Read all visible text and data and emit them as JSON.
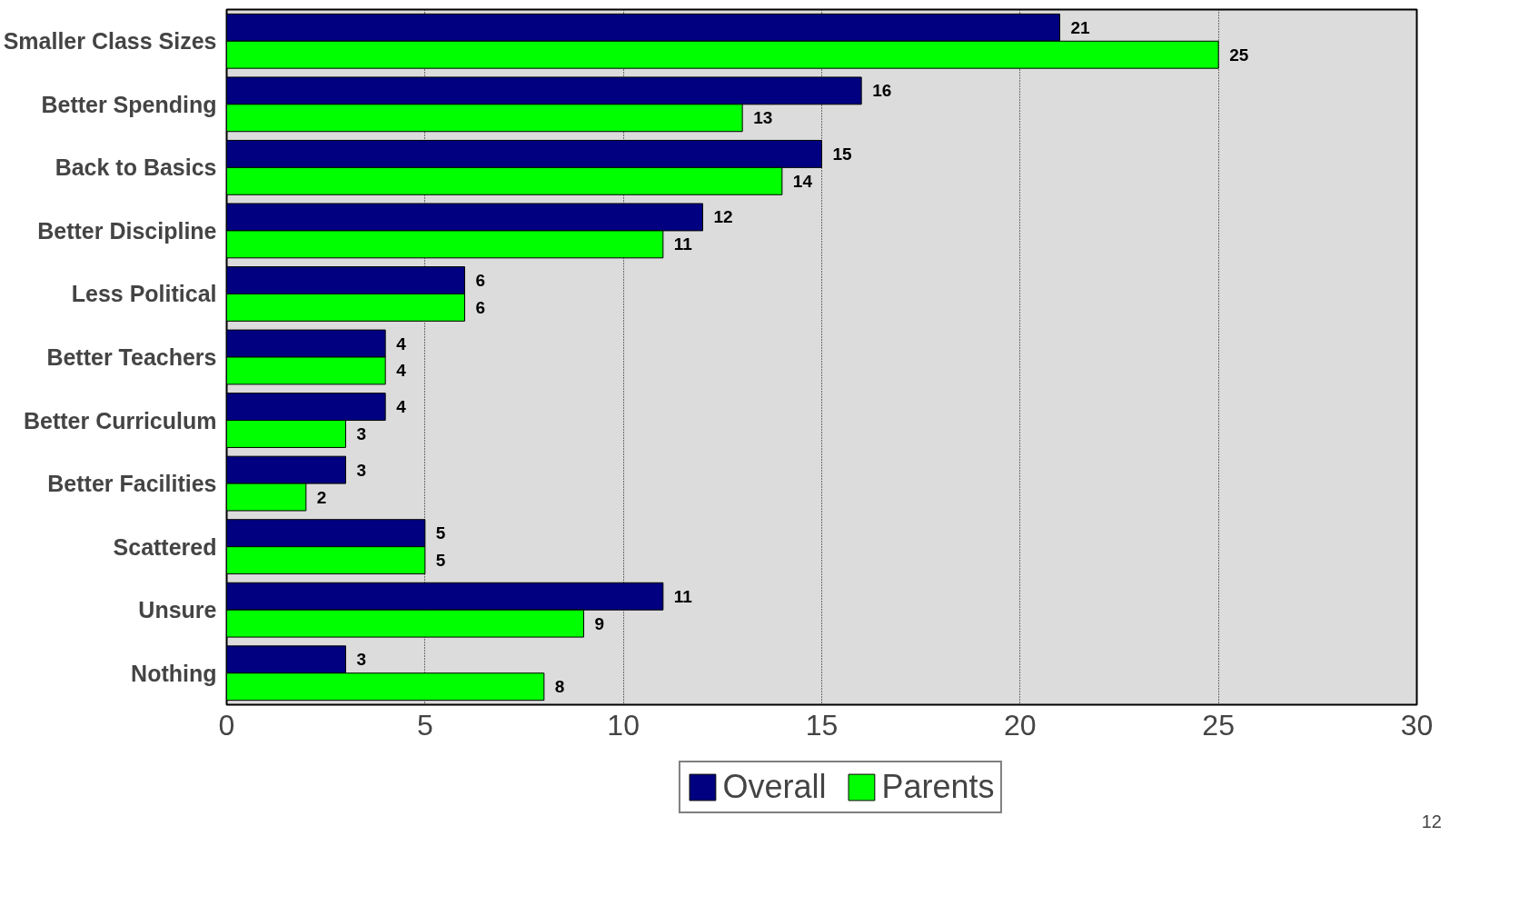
{
  "chart_data": {
    "type": "bar",
    "orientation": "horizontal",
    "categories": [
      "Smaller Class Sizes",
      "Better Spending",
      "Back to Basics",
      "Better Discipline",
      "Less Political",
      "Better Teachers",
      "Better Curriculum",
      "Better Facilities",
      "Scattered",
      "Unsure",
      "Nothing"
    ],
    "series": [
      {
        "name": "Overall",
        "color": "#000080",
        "values": [
          21,
          16,
          15,
          12,
          6,
          4,
          4,
          3,
          5,
          11,
          3
        ]
      },
      {
        "name": "Parents",
        "color": "#00ff00",
        "values": [
          25,
          13,
          14,
          11,
          6,
          4,
          3,
          2,
          5,
          9,
          8
        ]
      }
    ],
    "xlim": [
      0,
      30
    ],
    "xticks": [
      0,
      5,
      10,
      15,
      20,
      25,
      30
    ],
    "data_labels": true,
    "grid": "x",
    "legend": "bottom",
    "annotations": [
      "12"
    ]
  }
}
